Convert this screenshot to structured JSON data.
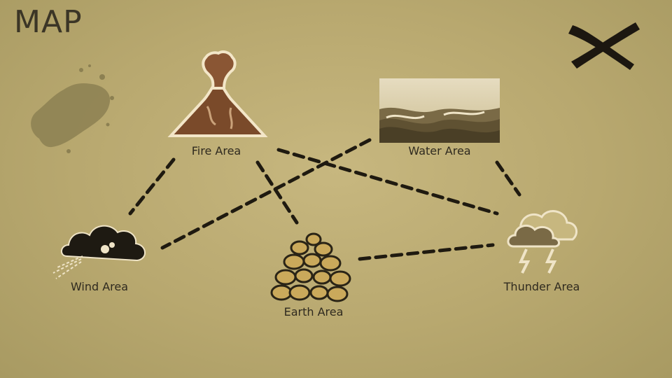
{
  "title": "MAP",
  "close_icon": "close-x-icon",
  "areas": [
    {
      "id": "fire",
      "label": "Fire Area",
      "icon": "volcano-icon"
    },
    {
      "id": "water",
      "label": "Water Area",
      "icon": "waves-icon"
    },
    {
      "id": "wind",
      "label": "Wind Area",
      "icon": "wind-cloud-icon"
    },
    {
      "id": "earth",
      "label": "Earth Area",
      "icon": "rock-pile-icon"
    },
    {
      "id": "thunder",
      "label": "Thunder Area",
      "icon": "storm-cloud-icon"
    }
  ],
  "paths": [
    {
      "from": "fire",
      "to": "wind"
    },
    {
      "from": "fire",
      "to": "earth"
    },
    {
      "from": "fire",
      "to": "thunder"
    },
    {
      "from": "water",
      "to": "wind"
    },
    {
      "from": "water",
      "to": "thunder"
    },
    {
      "from": "earth",
      "to": "thunder"
    }
  ],
  "colors": {
    "background": "#bfae74",
    "ink": "#1f1a10",
    "text": "#2f2a1f"
  }
}
